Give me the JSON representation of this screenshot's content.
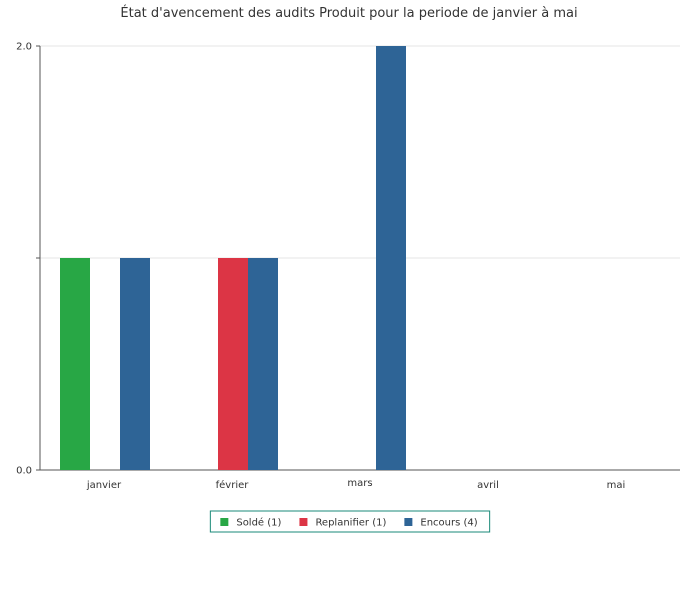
{
  "chart_data": {
    "type": "bar",
    "title": "État d'avencement des audits Produit pour la periode de janvier à mai",
    "categories": [
      "janvier",
      "février",
      "mars",
      "avril",
      "mai"
    ],
    "series": [
      {
        "name": "Soldé (1)",
        "color": "#28a745",
        "values": [
          1,
          0,
          0,
          0,
          0
        ]
      },
      {
        "name": "Replanifier (1)",
        "color": "#dc3545",
        "values": [
          0,
          1,
          0,
          0,
          0
        ]
      },
      {
        "name": "Encours (4)",
        "color": "#2e6496",
        "values": [
          1,
          1,
          2,
          0,
          0
        ]
      }
    ],
    "ylim": [
      0,
      2
    ],
    "y_tick_labels": [
      "0.0",
      "",
      "2.0"
    ],
    "grid": true,
    "legend_position": "bottom-center",
    "legend_border_color": "#1a8a78"
  }
}
